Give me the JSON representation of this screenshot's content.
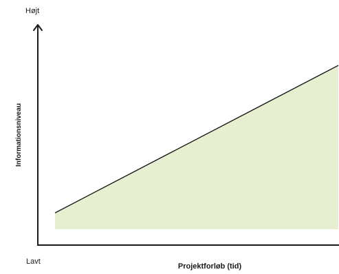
{
  "chart_data": {
    "type": "area",
    "title": "",
    "xlabel": "Projektforløb (tid)",
    "ylabel": "Informationsniveau",
    "y_top_label": "Højt",
    "y_bottom_label": "Lavt",
    "x": [
      0,
      1
    ],
    "series": [
      {
        "values": [
          0.1,
          1.0
        ]
      }
    ],
    "xlim": [
      0,
      1
    ],
    "ylim": [
      0,
      1
    ],
    "grid": false,
    "legend": "none",
    "colors": {
      "fill": "#e6f0d0",
      "line": "#1a1a1a",
      "axis": "#1a1a1a"
    }
  }
}
